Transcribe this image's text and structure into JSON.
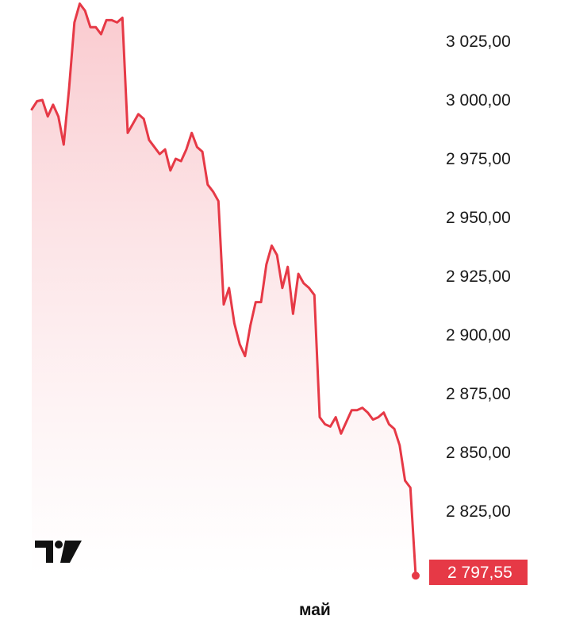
{
  "chart_data": {
    "type": "area",
    "title": "",
    "xlabel": "",
    "ylabel": "",
    "x_tick_labels": [
      "май"
    ],
    "y_tick_labels": [
      "3 025,00",
      "3 000,00",
      "2 975,00",
      "2 950,00",
      "2 925,00",
      "2 900,00",
      "2 875,00",
      "2 850,00",
      "2 825,00"
    ],
    "y_ticks": [
      3025,
      3000,
      2975,
      2950,
      2925,
      2900,
      2875,
      2850,
      2825
    ],
    "ylim": [
      2793,
      3045
    ],
    "last_value": 2797.55,
    "last_value_label": "2 797,55",
    "colors": {
      "line": "#e63946",
      "fill_top": "#f9c7cc",
      "fill_bottom": "#ffffff",
      "last_badge": "#e63946"
    },
    "grid": false,
    "logo": "tradingview-logo",
    "series": [
      {
        "values": [
          2996,
          2999.5,
          3000,
          2993,
          2998,
          2993,
          2981,
          3005,
          3033,
          3041,
          3038,
          3031,
          3031,
          3028,
          3034,
          3034,
          3033,
          3035,
          2986,
          2990,
          2994,
          2992,
          2983,
          2980,
          2977,
          2979,
          2970,
          2975,
          2974,
          2979,
          2986,
          2980,
          2978,
          2964,
          2961,
          2957,
          2913,
          2920,
          2905,
          2896,
          2891,
          2904,
          2914,
          2914,
          2930,
          2938,
          2934,
          2920,
          2929,
          2909,
          2926,
          2922,
          2920,
          2917,
          2865,
          2862,
          2861,
          2865,
          2858,
          2863,
          2868,
          2868,
          2869,
          2867,
          2864,
          2865,
          2867,
          2862,
          2860,
          2853,
          2838,
          2835,
          2797.55
        ]
      }
    ]
  }
}
